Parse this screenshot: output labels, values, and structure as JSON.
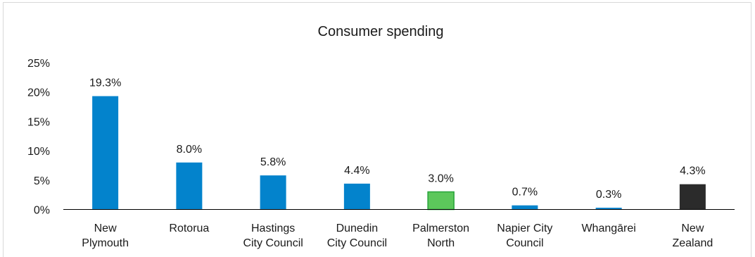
{
  "chart_data": {
    "type": "bar",
    "title": "Consumer spending",
    "xlabel": "",
    "ylabel": "",
    "ylim": [
      0,
      25
    ],
    "yticks": [
      "0%",
      "5%",
      "10%",
      "15%",
      "20%",
      "25%"
    ],
    "grid": false,
    "categories": [
      [
        "New",
        "Plymouth"
      ],
      [
        "Rotorua"
      ],
      [
        "Hastings",
        "City Council"
      ],
      [
        "Dunedin",
        "City Council"
      ],
      [
        "Palmerston",
        "North"
      ],
      [
        "Napier City",
        "Council"
      ],
      [
        "Whangārei"
      ],
      [
        "New",
        "Zealand"
      ]
    ],
    "values": [
      19.3,
      8.0,
      5.8,
      4.4,
      3.0,
      0.7,
      0.3,
      4.3
    ],
    "data_labels": [
      "19.3%",
      "8.0%",
      "5.8%",
      "4.4%",
      "3.0%",
      "0.7%",
      "0.3%",
      "4.3%"
    ],
    "colors": [
      "#0383cc",
      "#0383cc",
      "#0383cc",
      "#0383cc",
      "#5cc75b",
      "#0383cc",
      "#0383cc",
      "#2b2b2b"
    ],
    "edge_colors": [
      "none",
      "none",
      "none",
      "none",
      "#27a33a",
      "none",
      "none",
      "none"
    ],
    "axis_color": "#000000"
  }
}
